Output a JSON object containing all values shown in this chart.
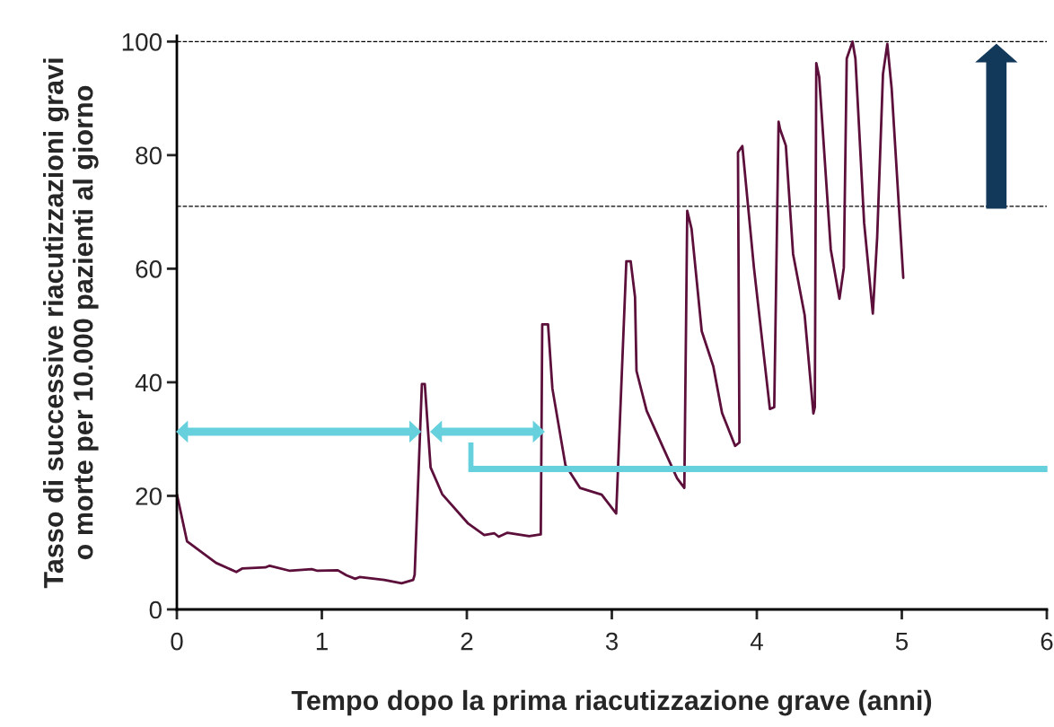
{
  "chart_data": {
    "type": "line",
    "xlabel": "Tempo dopo la prima riacutizzazione grave (anni)",
    "ylabel": "Tasso di successive riacutizzazioni gravi\no morte per 10.000 pazienti al giorno",
    "xlim": [
      0,
      6
    ],
    "xticks": [
      0,
      1,
      2,
      3,
      4,
      5,
      6
    ],
    "ylim": [
      0,
      101
    ],
    "yticks": [
      0,
      20,
      40,
      60,
      80,
      100
    ],
    "grid": false,
    "legend": false,
    "marker": "none",
    "line_style": "solid",
    "ref_lines": [
      {
        "axis": "y",
        "value": 100,
        "color": "#000000",
        "line_style": "dashed"
      },
      {
        "axis": "y",
        "value": 71,
        "color": "#000000",
        "line_style": "dashed"
      }
    ],
    "series": [
      {
        "color": "#5c0f3a",
        "x": [
          0,
          0.07,
          0.27,
          0.41,
          0.45,
          0.61,
          0.64,
          0.78,
          0.93,
          0.97,
          1.11,
          1.17,
          1.23,
          1.26,
          1.43,
          1.55,
          1.63,
          1.64,
          1.69,
          1.71,
          1.75,
          1.83,
          2.01,
          2.12,
          2.19,
          2.22,
          2.28,
          2.43,
          2.51,
          2.52,
          2.56,
          2.59,
          2.68,
          2.78,
          2.93,
          3.03,
          3.1,
          3.13,
          3.16,
          3.17,
          3.24,
          3.35,
          3.45,
          3.5,
          3.52,
          3.55,
          3.62,
          3.7,
          3.76,
          3.85,
          3.88,
          3.87,
          3.9,
          3.98,
          4.09,
          4.12,
          4.15,
          4.16,
          4.2,
          4.25,
          4.33,
          4.39,
          4.4,
          4.41,
          4.43,
          4.51,
          4.57,
          4.6,
          4.62,
          4.66,
          4.68,
          4.74,
          4.8,
          4.83,
          4.87,
          4.9,
          4.93,
          5.01
        ],
        "values": [
          20.3,
          12,
          8.2,
          6.6,
          7.2,
          7.4,
          7.7,
          6.8,
          7.1,
          6.8,
          6.9,
          6,
          5.4,
          5.7,
          5.2,
          4.6,
          5.2,
          6.1,
          39.7,
          39.7,
          25,
          20.3,
          15.1,
          13.1,
          13.4,
          12.8,
          13.5,
          12.9,
          13.2,
          50.2,
          50.2,
          38.9,
          25.4,
          21.4,
          20.2,
          16.9,
          61.3,
          61.3,
          55,
          42,
          35,
          28.7,
          23.1,
          21.4,
          70.2,
          67,
          49,
          42.8,
          34.6,
          28.8,
          29.4,
          80.5,
          81.6,
          60.2,
          35.3,
          35.6,
          85.9,
          84.6,
          81.7,
          62.6,
          51.8,
          34.5,
          35.6,
          96.2,
          93.8,
          63.4,
          54.7,
          60.2,
          97,
          100,
          97,
          68.1,
          52.1,
          65.5,
          94.3,
          99.6,
          91.7,
          58.4
        ]
      }
    ]
  }
}
